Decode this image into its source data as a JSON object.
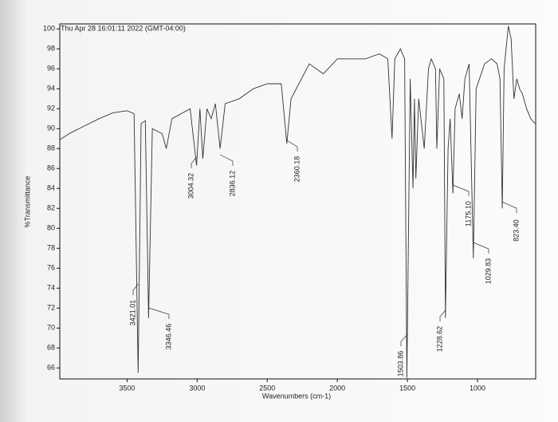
{
  "chart_data": {
    "type": "line",
    "subtitle": "Thu Apr 28 16:01:11 2022 (GMT-04:00)",
    "x_label": "Wavenumbers (cm-1)",
    "y_label": "%Transmittance",
    "xlim": [
      3980,
      585
    ],
    "ylim": [
      64.9,
      100.5
    ],
    "xticks": [
      3500,
      3000,
      2500,
      2000,
      1500,
      1000
    ],
    "yticks": [
      66,
      68,
      70,
      72,
      74,
      76,
      78,
      80,
      82,
      84,
      86,
      88,
      90,
      92,
      94,
      96,
      98,
      100
    ],
    "series": [
      {
        "color": "#333333",
        "x": [
          3980,
          3900,
          3800,
          3700,
          3600,
          3500,
          3450,
          3421.01,
          3400,
          3370,
          3346.46,
          3320,
          3250,
          3220,
          3180,
          3050,
          3004.32,
          2980,
          2960,
          2930,
          2900,
          2870,
          2836.12,
          2800,
          2700,
          2600,
          2500,
          2400,
          2360.18,
          2330,
          2200,
          2100,
          2000,
          1900,
          1800,
          1700,
          1640,
          1610,
          1590,
          1550,
          1520,
          1503.86,
          1480,
          1460,
          1450,
          1440,
          1420,
          1380,
          1350,
          1330,
          1300,
          1290,
          1270,
          1240,
          1228.62,
          1210,
          1195,
          1175.1,
          1160,
          1130,
          1110,
          1090,
          1060,
          1029.83,
          1010,
          950,
          900,
          860,
          840,
          823.4,
          810,
          780,
          760,
          740,
          720,
          700,
          680,
          650,
          620,
          590
        ],
        "values": [
          88.9,
          89.6,
          90.3,
          91,
          91.6,
          91.8,
          91.5,
          65.5,
          90.5,
          90.8,
          71,
          90,
          89.5,
          88,
          91,
          92,
          86.3,
          92,
          87,
          92,
          91,
          92.5,
          88,
          92.5,
          93,
          94,
          94.5,
          94.5,
          88.5,
          93,
          96.5,
          95.5,
          97,
          97,
          97,
          97.5,
          97,
          89,
          97,
          98,
          97,
          65,
          95,
          84,
          93,
          85,
          93,
          88,
          96,
          97,
          96,
          88,
          96,
          95,
          71,
          88,
          91,
          83.5,
          92,
          93.5,
          91,
          95,
          96.5,
          77,
          94,
          96.5,
          97,
          96.5,
          95,
          82,
          96,
          100.3,
          99,
          93,
          95,
          94,
          93.5,
          92,
          91,
          90.5
        ]
      }
    ],
    "peaks": [
      3421.01,
      3346.46,
      3004.32,
      2836.12,
      2360.18,
      1503.86,
      1228.62,
      1175.1,
      1029.83,
      823.4
    ],
    "peak_labels": [
      "3421.01",
      "3346.46",
      "3004.32",
      "2836.12",
      "2360.18",
      "1503.86",
      "1228.62",
      "1175.10",
      "1029.83",
      "823.40"
    ]
  }
}
